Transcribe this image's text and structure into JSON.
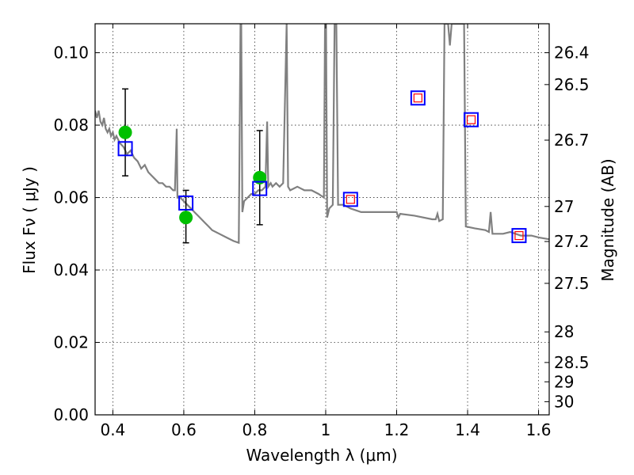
{
  "chart_data": {
    "type": "line",
    "title": "",
    "xlabel": "Wavelength  λ (μm)",
    "ylabel": "Flux  Fν  ( μJy )",
    "y2label": "Magnitude (AB)",
    "xlim": [
      0.35,
      1.63
    ],
    "ylim": [
      0.0,
      0.108
    ],
    "grid": true,
    "x_ticks": [
      0.4,
      0.6,
      0.8,
      1.0,
      1.2,
      1.4,
      1.6
    ],
    "x_tick_labels": [
      "0.4",
      "0.6",
      "0.8",
      "1",
      "1.2",
      "1.4",
      "1.6"
    ],
    "y_ticks": [
      0.0,
      0.02,
      0.04,
      0.06,
      0.08,
      0.1
    ],
    "y_tick_labels": [
      "0.00",
      "0.02",
      "0.04",
      "0.06",
      "0.08",
      "0.10"
    ],
    "y2_ticks": [
      {
        "label": "26.4",
        "mag": 26.4
      },
      {
        "label": "26.5",
        "mag": 26.5
      },
      {
        "label": "26.7",
        "mag": 26.7
      },
      {
        "label": "27",
        "mag": 27.0
      },
      {
        "label": "27.2",
        "mag": 27.2
      },
      {
        "label": "27.5",
        "mag": 27.5
      },
      {
        "label": "28",
        "mag": 28.0
      },
      {
        "label": "28.5",
        "mag": 28.5
      },
      {
        "label": "29",
        "mag": 29.0
      },
      {
        "label": "30",
        "mag": 30.0
      }
    ],
    "series": [
      {
        "kind": "model_spectrum",
        "color": "#808080",
        "points": [
          [
            0.35,
            0.084
          ],
          [
            0.355,
            0.082
          ],
          [
            0.36,
            0.084
          ],
          [
            0.365,
            0.081
          ],
          [
            0.37,
            0.08
          ],
          [
            0.375,
            0.082
          ],
          [
            0.38,
            0.079
          ],
          [
            0.385,
            0.078
          ],
          [
            0.39,
            0.079
          ],
          [
            0.395,
            0.077
          ],
          [
            0.4,
            0.078
          ],
          [
            0.405,
            0.076
          ],
          [
            0.41,
            0.077
          ],
          [
            0.42,
            0.075
          ],
          [
            0.43,
            0.074
          ],
          [
            0.44,
            0.072
          ],
          [
            0.45,
            0.073
          ],
          [
            0.46,
            0.071
          ],
          [
            0.47,
            0.07
          ],
          [
            0.48,
            0.068
          ],
          [
            0.49,
            0.069
          ],
          [
            0.5,
            0.067
          ],
          [
            0.51,
            0.066
          ],
          [
            0.52,
            0.065
          ],
          [
            0.53,
            0.064
          ],
          [
            0.54,
            0.064
          ],
          [
            0.55,
            0.063
          ],
          [
            0.56,
            0.063
          ],
          [
            0.57,
            0.062
          ],
          [
            0.575,
            0.062
          ],
          [
            0.58,
            0.079
          ],
          [
            0.582,
            0.06
          ],
          [
            0.59,
            0.06
          ],
          [
            0.6,
            0.059
          ],
          [
            0.61,
            0.058
          ],
          [
            0.62,
            0.057
          ],
          [
            0.63,
            0.056
          ],
          [
            0.64,
            0.055
          ],
          [
            0.65,
            0.054
          ],
          [
            0.66,
            0.053
          ],
          [
            0.67,
            0.052
          ],
          [
            0.68,
            0.051
          ],
          [
            0.7,
            0.05
          ],
          [
            0.72,
            0.049
          ],
          [
            0.74,
            0.048
          ],
          [
            0.755,
            0.0475
          ],
          [
            0.76,
            0.108
          ],
          [
            0.762,
            0.108
          ],
          [
            0.765,
            0.056
          ],
          [
            0.77,
            0.059
          ],
          [
            0.78,
            0.06
          ],
          [
            0.79,
            0.061
          ],
          [
            0.8,
            0.061
          ],
          [
            0.81,
            0.062
          ],
          [
            0.82,
            0.062
          ],
          [
            0.83,
            0.063
          ],
          [
            0.835,
            0.081
          ],
          [
            0.838,
            0.063
          ],
          [
            0.845,
            0.064
          ],
          [
            0.85,
            0.063
          ],
          [
            0.86,
            0.064
          ],
          [
            0.87,
            0.063
          ],
          [
            0.88,
            0.064
          ],
          [
            0.89,
            0.108
          ],
          [
            0.894,
            0.063
          ],
          [
            0.9,
            0.062
          ],
          [
            0.92,
            0.063
          ],
          [
            0.94,
            0.062
          ],
          [
            0.96,
            0.062
          ],
          [
            0.98,
            0.061
          ],
          [
            0.995,
            0.06
          ],
          [
            0.998,
            0.108
          ],
          [
            1.001,
            0.108
          ],
          [
            1.004,
            0.0545
          ],
          [
            1.01,
            0.057
          ],
          [
            1.02,
            0.058
          ],
          [
            1.025,
            0.108
          ],
          [
            1.03,
            0.108
          ],
          [
            1.035,
            0.058
          ],
          [
            1.05,
            0.058
          ],
          [
            1.07,
            0.057
          ],
          [
            1.1,
            0.056
          ],
          [
            1.15,
            0.056
          ],
          [
            1.2,
            0.056
          ],
          [
            1.205,
            0.0545
          ],
          [
            1.21,
            0.0555
          ],
          [
            1.25,
            0.055
          ],
          [
            1.3,
            0.054
          ],
          [
            1.31,
            0.054
          ],
          [
            1.315,
            0.0555
          ],
          [
            1.32,
            0.0535
          ],
          [
            1.33,
            0.054
          ],
          [
            1.335,
            0.108
          ],
          [
            1.345,
            0.108
          ],
          [
            1.35,
            0.102
          ],
          [
            1.355,
            0.108
          ],
          [
            1.39,
            0.108
          ],
          [
            1.395,
            0.052
          ],
          [
            1.42,
            0.0515
          ],
          [
            1.45,
            0.051
          ],
          [
            1.46,
            0.0505
          ],
          [
            1.465,
            0.056
          ],
          [
            1.47,
            0.05
          ],
          [
            1.5,
            0.05
          ],
          [
            1.52,
            0.0505
          ],
          [
            1.55,
            0.0495
          ],
          [
            1.58,
            0.0495
          ],
          [
            1.6,
            0.049
          ],
          [
            1.63,
            0.0485
          ]
        ]
      },
      {
        "kind": "observed",
        "marker": "circle",
        "color": "#00c000",
        "points": [
          {
            "x": 0.435,
            "y": 0.078,
            "err_lo": 0.066,
            "err_hi": 0.09
          },
          {
            "x": 0.606,
            "y": 0.0545,
            "err_lo": 0.0475,
            "err_hi": 0.062
          },
          {
            "x": 0.814,
            "y": 0.0655,
            "err_lo": 0.0525,
            "err_hi": 0.0785
          }
        ]
      },
      {
        "kind": "model_band",
        "marker": "square",
        "color": "#0000ff",
        "points": [
          {
            "x": 0.435,
            "y": 0.0735
          },
          {
            "x": 0.606,
            "y": 0.0585
          },
          {
            "x": 0.814,
            "y": 0.0625
          },
          {
            "x": 1.07,
            "y": 0.0595
          },
          {
            "x": 1.26,
            "y": 0.0875
          },
          {
            "x": 1.41,
            "y": 0.0815
          },
          {
            "x": 1.545,
            "y": 0.0495
          }
        ]
      },
      {
        "kind": "upper_limit",
        "marker": "square",
        "color": "#ff0000",
        "points": [
          {
            "x": 1.07,
            "y": 0.0595
          },
          {
            "x": 1.26,
            "y": 0.0875
          },
          {
            "x": 1.41,
            "y": 0.0815
          },
          {
            "x": 1.545,
            "y": 0.0495
          }
        ]
      }
    ]
  }
}
